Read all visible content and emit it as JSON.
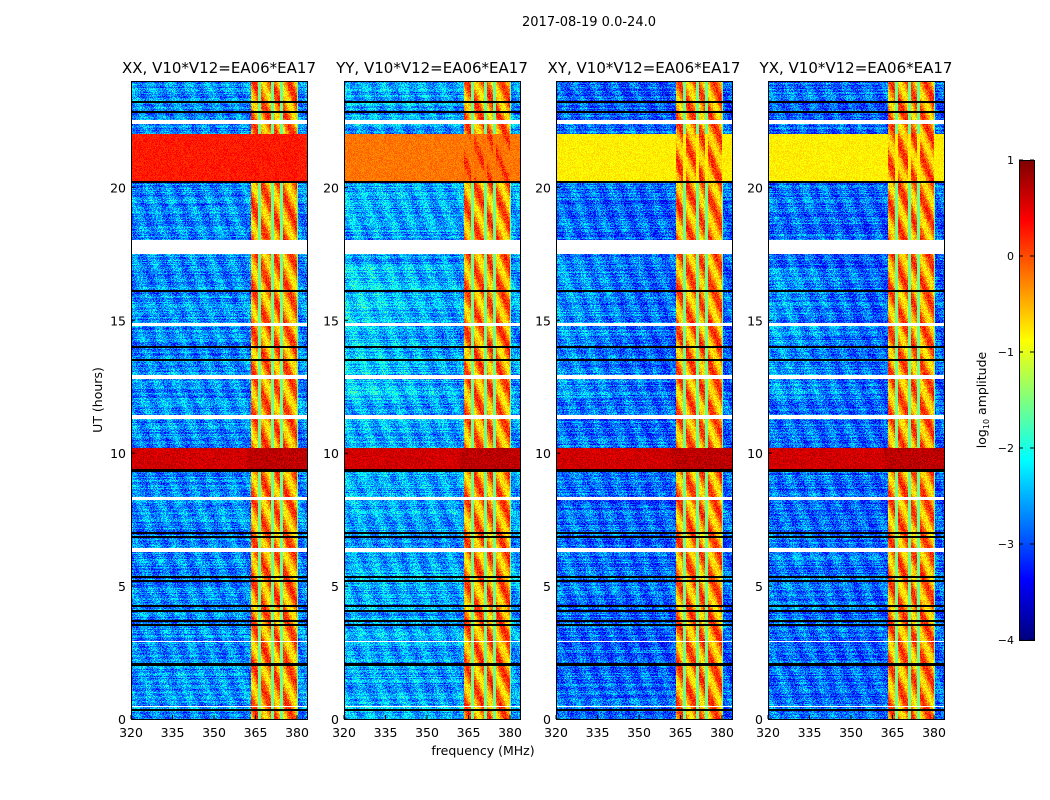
{
  "chart_data": {
    "type": "heatmap",
    "title": "2017-08-19 0.0-24.0",
    "xlabel": "frequency (MHz)",
    "ylabel": "UT (hours)",
    "xlim": [
      320,
      383.6
    ],
    "ylim": [
      0,
      24
    ],
    "xticks": [
      "320",
      "335",
      "350",
      "365",
      "380"
    ],
    "xtick_values": [
      320,
      335,
      350,
      365,
      380
    ],
    "yticks": [
      "0",
      "5",
      "10",
      "15",
      "20"
    ],
    "ytick_values": [
      0,
      5,
      10,
      15,
      20
    ],
    "colormap": "jet",
    "colorbar": {
      "label": "log10 amplitude",
      "label_main": "log",
      "label_sub": "10",
      "label_rest": " amplitude",
      "range": [
        -4,
        1
      ],
      "ticks": [
        "1",
        "0",
        "−1",
        "−2",
        "−3",
        "−4"
      ],
      "tick_values": [
        1,
        0,
        -1,
        -2,
        -3,
        -4
      ]
    },
    "panels": [
      {
        "title": "XX, V10*V12=EA06*EA17",
        "background_level": -2.7,
        "bright_band_level": 0.25
      },
      {
        "title": "YY, V10*V12=EA06*EA17",
        "background_level": -2.6,
        "bright_band_level": -0.2
      },
      {
        "title": "XY, V10*V12=EA06*EA17",
        "background_level": -2.9,
        "bright_band_level": -0.8
      },
      {
        "title": "YX, V10*V12=EA06*EA17",
        "background_level": -2.9,
        "bright_band_level": -0.8
      }
    ],
    "features": {
      "rfi_band_mhz": [
        363.5,
        380.2
      ],
      "rfi_level": -0.3,
      "rfi_gap_mhz": [
        366.5,
        371,
        374.5,
        380.5
      ],
      "bright_band_hours": [
        20.2,
        22.0
      ],
      "strong_event_hours": [
        9.4,
        10.2
      ],
      "strong_event_level": 0.7,
      "flagged_hours": [
        [
          17.5,
          18.0
        ],
        [
          22.4,
          22.55
        ],
        [
          12.8,
          12.95
        ],
        [
          11.3,
          11.45
        ],
        [
          6.3,
          6.45
        ],
        [
          8.25,
          8.35
        ],
        [
          14.8,
          14.9
        ],
        [
          2.9,
          2.95
        ],
        [
          0.45,
          0.5
        ]
      ],
      "dark_line_hours": [
        0.35,
        2.05,
        3.55,
        3.7,
        4.05,
        4.25,
        5.2,
        5.35,
        6.85,
        7.0,
        9.35,
        13.5,
        14.0,
        16.1,
        20.2,
        22.85,
        23.2
      ]
    }
  }
}
